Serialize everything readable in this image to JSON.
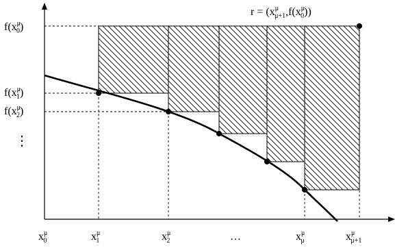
{
  "diagram": {
    "point_label": {
      "prefix": "r = (x",
      "sup1": "μ",
      "sub1": "μ+1",
      "mid": ",f(x",
      "sup2": "μ",
      "sub2": "0",
      "suffix": "))"
    },
    "y_labels": [
      {
        "f": "f(x",
        "sup": "μ",
        "sub": "0",
        "close": ")"
      },
      {
        "f": "f(x",
        "sup": "μ",
        "sub": "1",
        "close": ")"
      },
      {
        "f": "f(x",
        "sup": "μ",
        "sub": "2",
        "close": ")"
      }
    ],
    "y_ellipsis": "⋮",
    "x_labels": [
      {
        "base": "x",
        "sup": "μ",
        "sub": "0"
      },
      {
        "base": "x",
        "sup": "μ",
        "sub": "1"
      },
      {
        "base": "x",
        "sup": "μ",
        "sub": "2"
      },
      {
        "base": "x",
        "sup": "μ",
        "sub": "μ"
      },
      {
        "base": "x",
        "sup": "μ",
        "sub": "μ+1"
      }
    ],
    "x_ellipsis": "…"
  }
}
